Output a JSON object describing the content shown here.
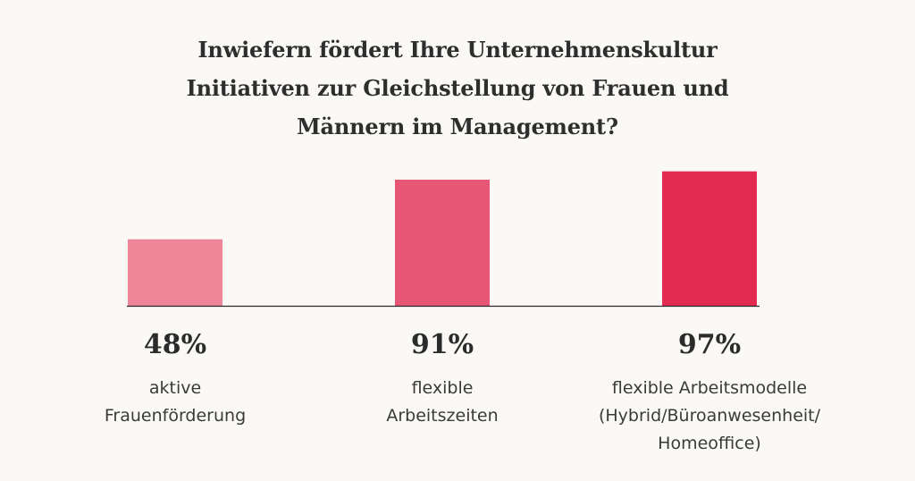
{
  "title_lines": [
    "Inwiefern fördert Ihre Unternehmenskultur",
    "Initiativen zur Gleichstellung von Frauen und",
    "Männern im Management?"
  ],
  "chart_data": {
    "type": "bar",
    "categories": [
      [
        "aktive",
        "Frauenförderung"
      ],
      [
        "flexible",
        "Arbeitszeiten"
      ],
      [
        "flexible Arbeitsmodelle",
        "(Hybrid/Büroanwesenheit/",
        "Homeoffice)"
      ]
    ],
    "values": [
      48,
      91,
      97
    ],
    "value_labels": [
      "48%",
      "91%",
      "97%"
    ],
    "unit": "%",
    "ylim": [
      0,
      100
    ],
    "colors": [
      "#ef8599",
      "#e85676",
      "#e32b52"
    ],
    "grid": false,
    "legend": "none"
  }
}
